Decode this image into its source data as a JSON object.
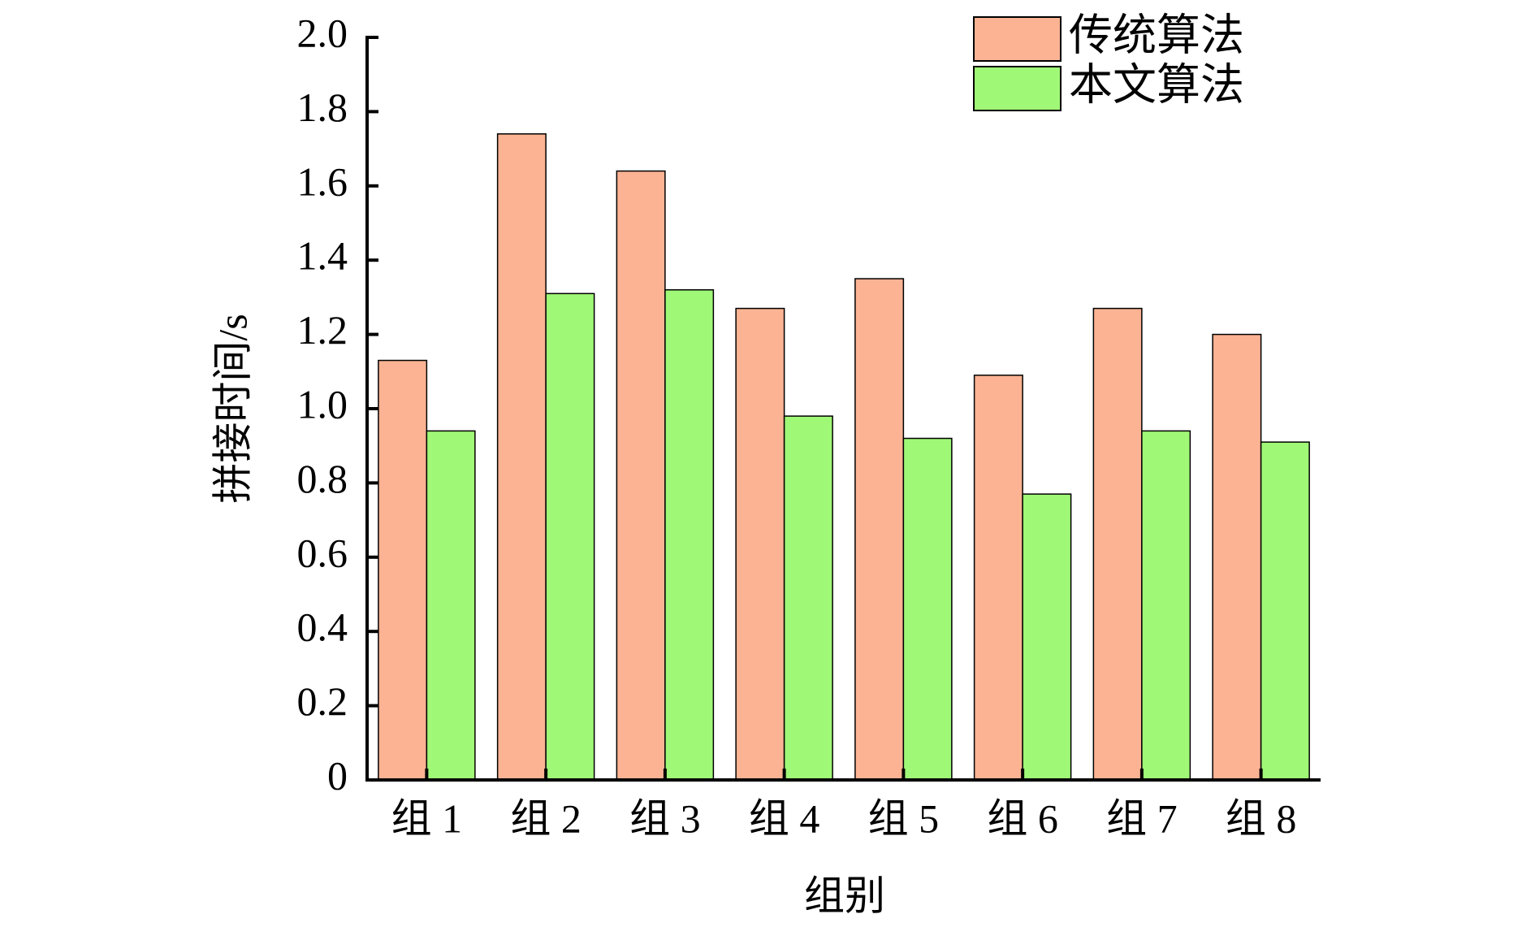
{
  "chart_data": {
    "type": "bar",
    "categories": [
      "组 1",
      "组 2",
      "组 3",
      "组 4",
      "组 5",
      "组 6",
      "组 7",
      "组 8"
    ],
    "series": [
      {
        "name": "传统算法",
        "color": "#fbb393",
        "values": [
          1.13,
          1.74,
          1.64,
          1.27,
          1.35,
          1.09,
          1.27,
          1.2
        ]
      },
      {
        "name": "本文算法",
        "color": "#a0f877",
        "values": [
          0.94,
          1.31,
          1.32,
          0.98,
          0.92,
          0.77,
          0.94,
          0.91
        ]
      }
    ],
    "x_label": "组别",
    "y_label": "拼接时间/s",
    "ylim": [
      0,
      2.0
    ],
    "yticks": [
      0,
      {
        "value": 0.2,
        "label": "0.2"
      },
      {
        "value": 0.4,
        "label": "0.4"
      },
      {
        "value": 0.6,
        "label": "0.6"
      },
      {
        "value": 0.8,
        "label": "0.8"
      },
      {
        "value": 1.0,
        "label": "1.0"
      },
      {
        "value": 1.2,
        "label": "1.2"
      },
      {
        "value": 1.4,
        "label": "1.4"
      },
      {
        "value": 1.6,
        "label": "1.6"
      },
      {
        "value": 1.8,
        "label": "1.8"
      },
      {
        "value": 2.0,
        "label": "2.0"
      }
    ],
    "grid": false,
    "legend": "top-right"
  }
}
